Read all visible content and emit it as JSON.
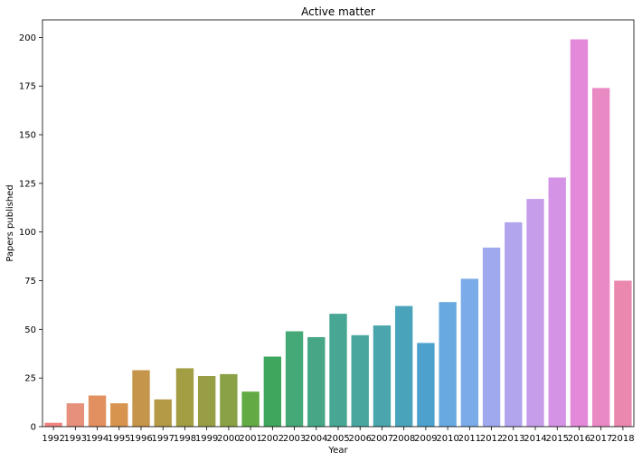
{
  "chart_data": {
    "type": "bar",
    "title": "Active matter",
    "xlabel": "Year",
    "ylabel": "Papers published",
    "ylim": [
      0,
      209
    ],
    "yticks": [
      0,
      25,
      50,
      75,
      100,
      125,
      150,
      175,
      200
    ],
    "grid": false,
    "categories": [
      "1992",
      "1993",
      "1994",
      "1995",
      "1996",
      "1997",
      "1998",
      "1999",
      "2000",
      "2001",
      "2002",
      "2003",
      "2004",
      "2005",
      "2006",
      "2007",
      "2008",
      "2009",
      "2010",
      "2011",
      "2012",
      "2013",
      "2014",
      "2015",
      "2016",
      "2017",
      "2018"
    ],
    "values": [
      2,
      12,
      16,
      12,
      29,
      14,
      30,
      26,
      27,
      18,
      36,
      49,
      46,
      58,
      47,
      52,
      62,
      43,
      64,
      76,
      92,
      105,
      117,
      128,
      199,
      174,
      75
    ],
    "colors": [
      "#f0857f",
      "#e7907c",
      "#e29060",
      "#d7944f",
      "#c4954b",
      "#b49a47",
      "#a39e44",
      "#989e45",
      "#8ba146",
      "#63aa44",
      "#3fa65d",
      "#45a877",
      "#46a686",
      "#48a694",
      "#49a69f",
      "#4aa5ac",
      "#49a4bb",
      "#4ca2cc",
      "#67a9e0",
      "#7bace9",
      "#9fa9ee",
      "#b3a4ee",
      "#c59de9",
      "#d593e5",
      "#e488da",
      "#e98ac5",
      "#ea88b0"
    ]
  }
}
